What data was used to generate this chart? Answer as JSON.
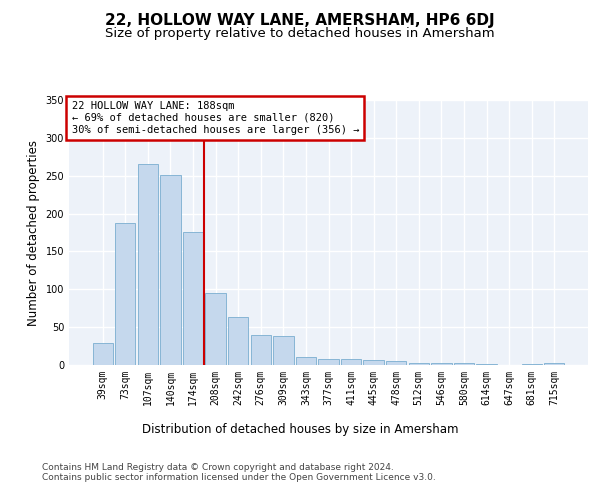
{
  "title": "22, HOLLOW WAY LANE, AMERSHAM, HP6 6DJ",
  "subtitle": "Size of property relative to detached houses in Amersham",
  "xlabel": "Distribution of detached houses by size in Amersham",
  "ylabel": "Number of detached properties",
  "categories": [
    "39sqm",
    "73sqm",
    "107sqm",
    "140sqm",
    "174sqm",
    "208sqm",
    "242sqm",
    "276sqm",
    "309sqm",
    "343sqm",
    "377sqm",
    "411sqm",
    "445sqm",
    "478sqm",
    "512sqm",
    "546sqm",
    "580sqm",
    "614sqm",
    "647sqm",
    "681sqm",
    "715sqm"
  ],
  "values": [
    29,
    187,
    266,
    251,
    176,
    95,
    64,
    39,
    38,
    11,
    8,
    8,
    6,
    5,
    3,
    3,
    3,
    1,
    0,
    1,
    2
  ],
  "bar_color": "#c5d8ed",
  "bar_edge_color": "#7aaed0",
  "background_color": "#edf2f9",
  "grid_color": "#ffffff",
  "annotation_text": "22 HOLLOW WAY LANE: 188sqm\n← 69% of detached houses are smaller (820)\n30% of semi-detached houses are larger (356) →",
  "annotation_box_color": "#ffffff",
  "annotation_box_edge": "#cc0000",
  "vline_x": 4.5,
  "vline_color": "#cc0000",
  "ylim": [
    0,
    350
  ],
  "yticks": [
    0,
    50,
    100,
    150,
    200,
    250,
    300,
    350
  ],
  "footer_text": "Contains HM Land Registry data © Crown copyright and database right 2024.\nContains public sector information licensed under the Open Government Licence v3.0.",
  "title_fontsize": 11,
  "subtitle_fontsize": 9.5,
  "axis_label_fontsize": 8.5,
  "tick_fontsize": 7,
  "footer_fontsize": 6.5,
  "annotation_fontsize": 7.5
}
